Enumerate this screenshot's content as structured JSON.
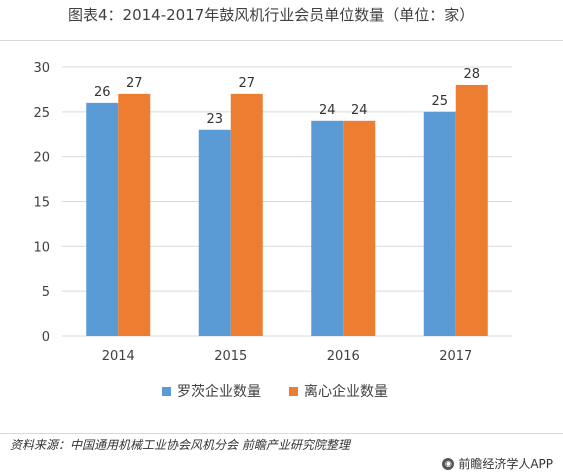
{
  "title": "图表4：2014-2017年鼓风机行业会员单位数量（单位：家）",
  "source": "资料来源：中国通用机械工业协会风机分会 前瞻产业研究院整理",
  "brand": "前瞻经济学人APP",
  "colors": {
    "series1": "#5b9bd5",
    "series2": "#ed7d31",
    "grid": "#d9d9d9"
  },
  "chart_data": {
    "type": "bar",
    "categories": [
      "2014",
      "2015",
      "2016",
      "2017"
    ],
    "series": [
      {
        "name": "罗茨企业数量",
        "values": [
          26,
          23,
          24,
          25
        ]
      },
      {
        "name": "离心企业数量",
        "values": [
          27,
          27,
          24,
          28
        ]
      }
    ],
    "ylim": [
      0,
      30
    ],
    "yticks": [
      0,
      5,
      10,
      15,
      20,
      25,
      30
    ],
    "grid": true,
    "legend": "bottom",
    "data_labels": true
  }
}
